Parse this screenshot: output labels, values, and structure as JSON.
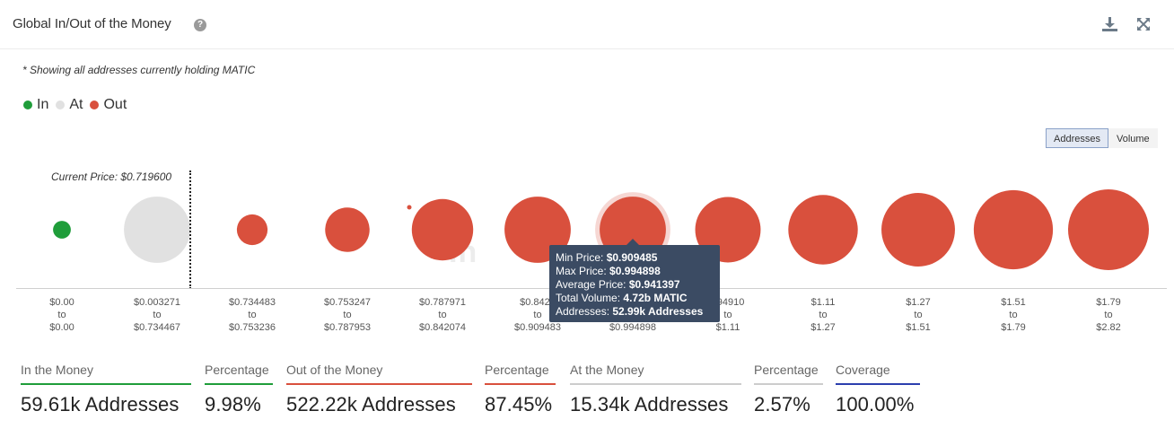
{
  "header": {
    "title": "Global In/Out of the Money",
    "help_icon": "question-circle-icon",
    "download_icon": "download-icon",
    "expand_icon": "expand-icon"
  },
  "note": "* Showing all addresses currently holding MATIC",
  "legend": [
    {
      "label": "In",
      "color": "#1f9d3a"
    },
    {
      "label": "At",
      "color": "#e1e1e1"
    },
    {
      "label": "Out",
      "color": "#d9503d"
    }
  ],
  "toggle": {
    "addresses": "Addresses",
    "volume": "Volume",
    "active": "Addresses"
  },
  "current_price": "Current Price: $0.719600",
  "watermark": "In",
  "chart_data": {
    "type": "bubble",
    "metric": "addresses",
    "x_ticks": [
      {
        "min": "$0.00",
        "to": "to",
        "max": "$0.00"
      },
      {
        "min": "$0.003271",
        "to": "to",
        "max": "$0.734467"
      },
      {
        "min": "$0.734483",
        "to": "to",
        "max": "$0.753236"
      },
      {
        "min": "$0.753247",
        "to": "to",
        "max": "$0.787953"
      },
      {
        "min": "$0.787971",
        "to": "to",
        "max": "$0.842074"
      },
      {
        "min": "$0.8420",
        "to": "to",
        "max": "$0.909483"
      },
      {
        "min": "",
        "to": "",
        "max": "$0.994898"
      },
      {
        "min": "994910",
        "to": "to",
        "max": "$1.11"
      },
      {
        "min": "$1.11",
        "to": "to",
        "max": "$1.27"
      },
      {
        "min": "$1.27",
        "to": "to",
        "max": "$1.51"
      },
      {
        "min": "$1.51",
        "to": "to",
        "max": "$1.79"
      },
      {
        "min": "$1.79",
        "to": "to",
        "max": "$2.82"
      }
    ],
    "bubbles": [
      {
        "status": "In",
        "relative_size": 0.22
      },
      {
        "status": "At",
        "relative_size": 0.82
      },
      {
        "status": "Out",
        "relative_size": 0.38
      },
      {
        "status": "Out",
        "relative_size": 0.55
      },
      {
        "status": "Out",
        "relative_size": 0.76
      },
      {
        "status": "Out",
        "relative_size": 0.82
      },
      {
        "status": "Out",
        "relative_size": 0.82,
        "highlighted": true
      },
      {
        "status": "Out",
        "relative_size": 0.81
      },
      {
        "status": "Out",
        "relative_size": 0.86
      },
      {
        "status": "Out",
        "relative_size": 0.91
      },
      {
        "status": "Out",
        "relative_size": 0.98
      },
      {
        "status": "Out",
        "relative_size": 1.0
      }
    ]
  },
  "tooltip": {
    "min_label": "Min Price:",
    "min_value": "$0.909485",
    "max_label": "Max Price:",
    "max_value": "$0.994898",
    "avg_label": "Average Price:",
    "avg_value": "$0.941397",
    "vol_label": "Total Volume:",
    "vol_value": "4.72b MATIC",
    "addr_label": "Addresses:",
    "addr_value": "52.99k Addresses"
  },
  "stats": [
    {
      "label": "In the Money",
      "value": "59.61k Addresses",
      "color": "#1f9d3a"
    },
    {
      "label": "Percentage",
      "value": "9.98%",
      "color": "#1f9d3a"
    },
    {
      "label": "Out of the Money",
      "value": "522.22k Addresses",
      "color": "#d9503d"
    },
    {
      "label": "Percentage",
      "value": "87.45%",
      "color": "#d9503d"
    },
    {
      "label": "At the Money",
      "value": "15.34k Addresses",
      "color": "#cccccc"
    },
    {
      "label": "Percentage",
      "value": "2.57%",
      "color": "#cccccc"
    },
    {
      "label": "Coverage",
      "value": "100.00%",
      "color": "#2b3fae"
    }
  ]
}
